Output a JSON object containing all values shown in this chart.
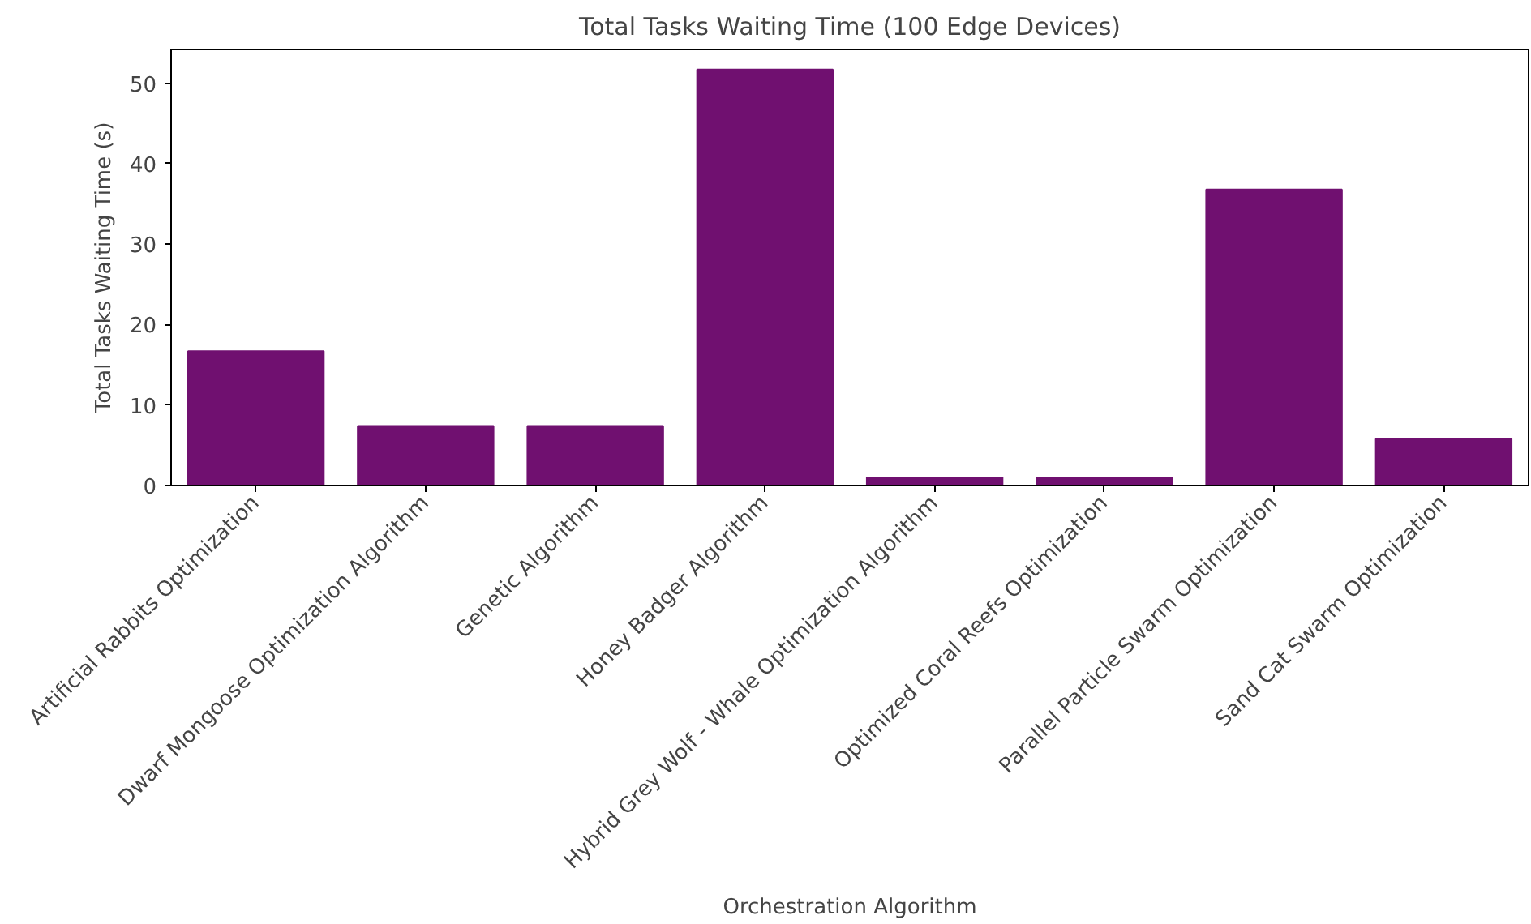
{
  "chart_data": {
    "type": "bar",
    "title": "Total Tasks Waiting Time (100 Edge Devices)",
    "xlabel": "Orchestration Algorithm",
    "ylabel": "Total Tasks Waiting Time (s)",
    "categories": [
      "Artificial Rabbits Optimization",
      "Dwarf Mongoose Optimization Algorithm",
      "Genetic Algorithm",
      "Honey Badger Algorithm",
      "Hybrid Grey Wolf - Whale Optimization Algorithm",
      "Optimized Coral Reefs Optimization",
      "Parallel Particle Swarm Optimization",
      "Sand Cat Swarm Optimization"
    ],
    "values": [
      16.7,
      7.4,
      7.4,
      51.7,
      1.0,
      1.0,
      36.8,
      5.8
    ],
    "color": "#701070",
    "ylim": [
      0,
      54.2
    ],
    "yticks": [
      0,
      10,
      20,
      30,
      40,
      50
    ],
    "grid": false
  }
}
